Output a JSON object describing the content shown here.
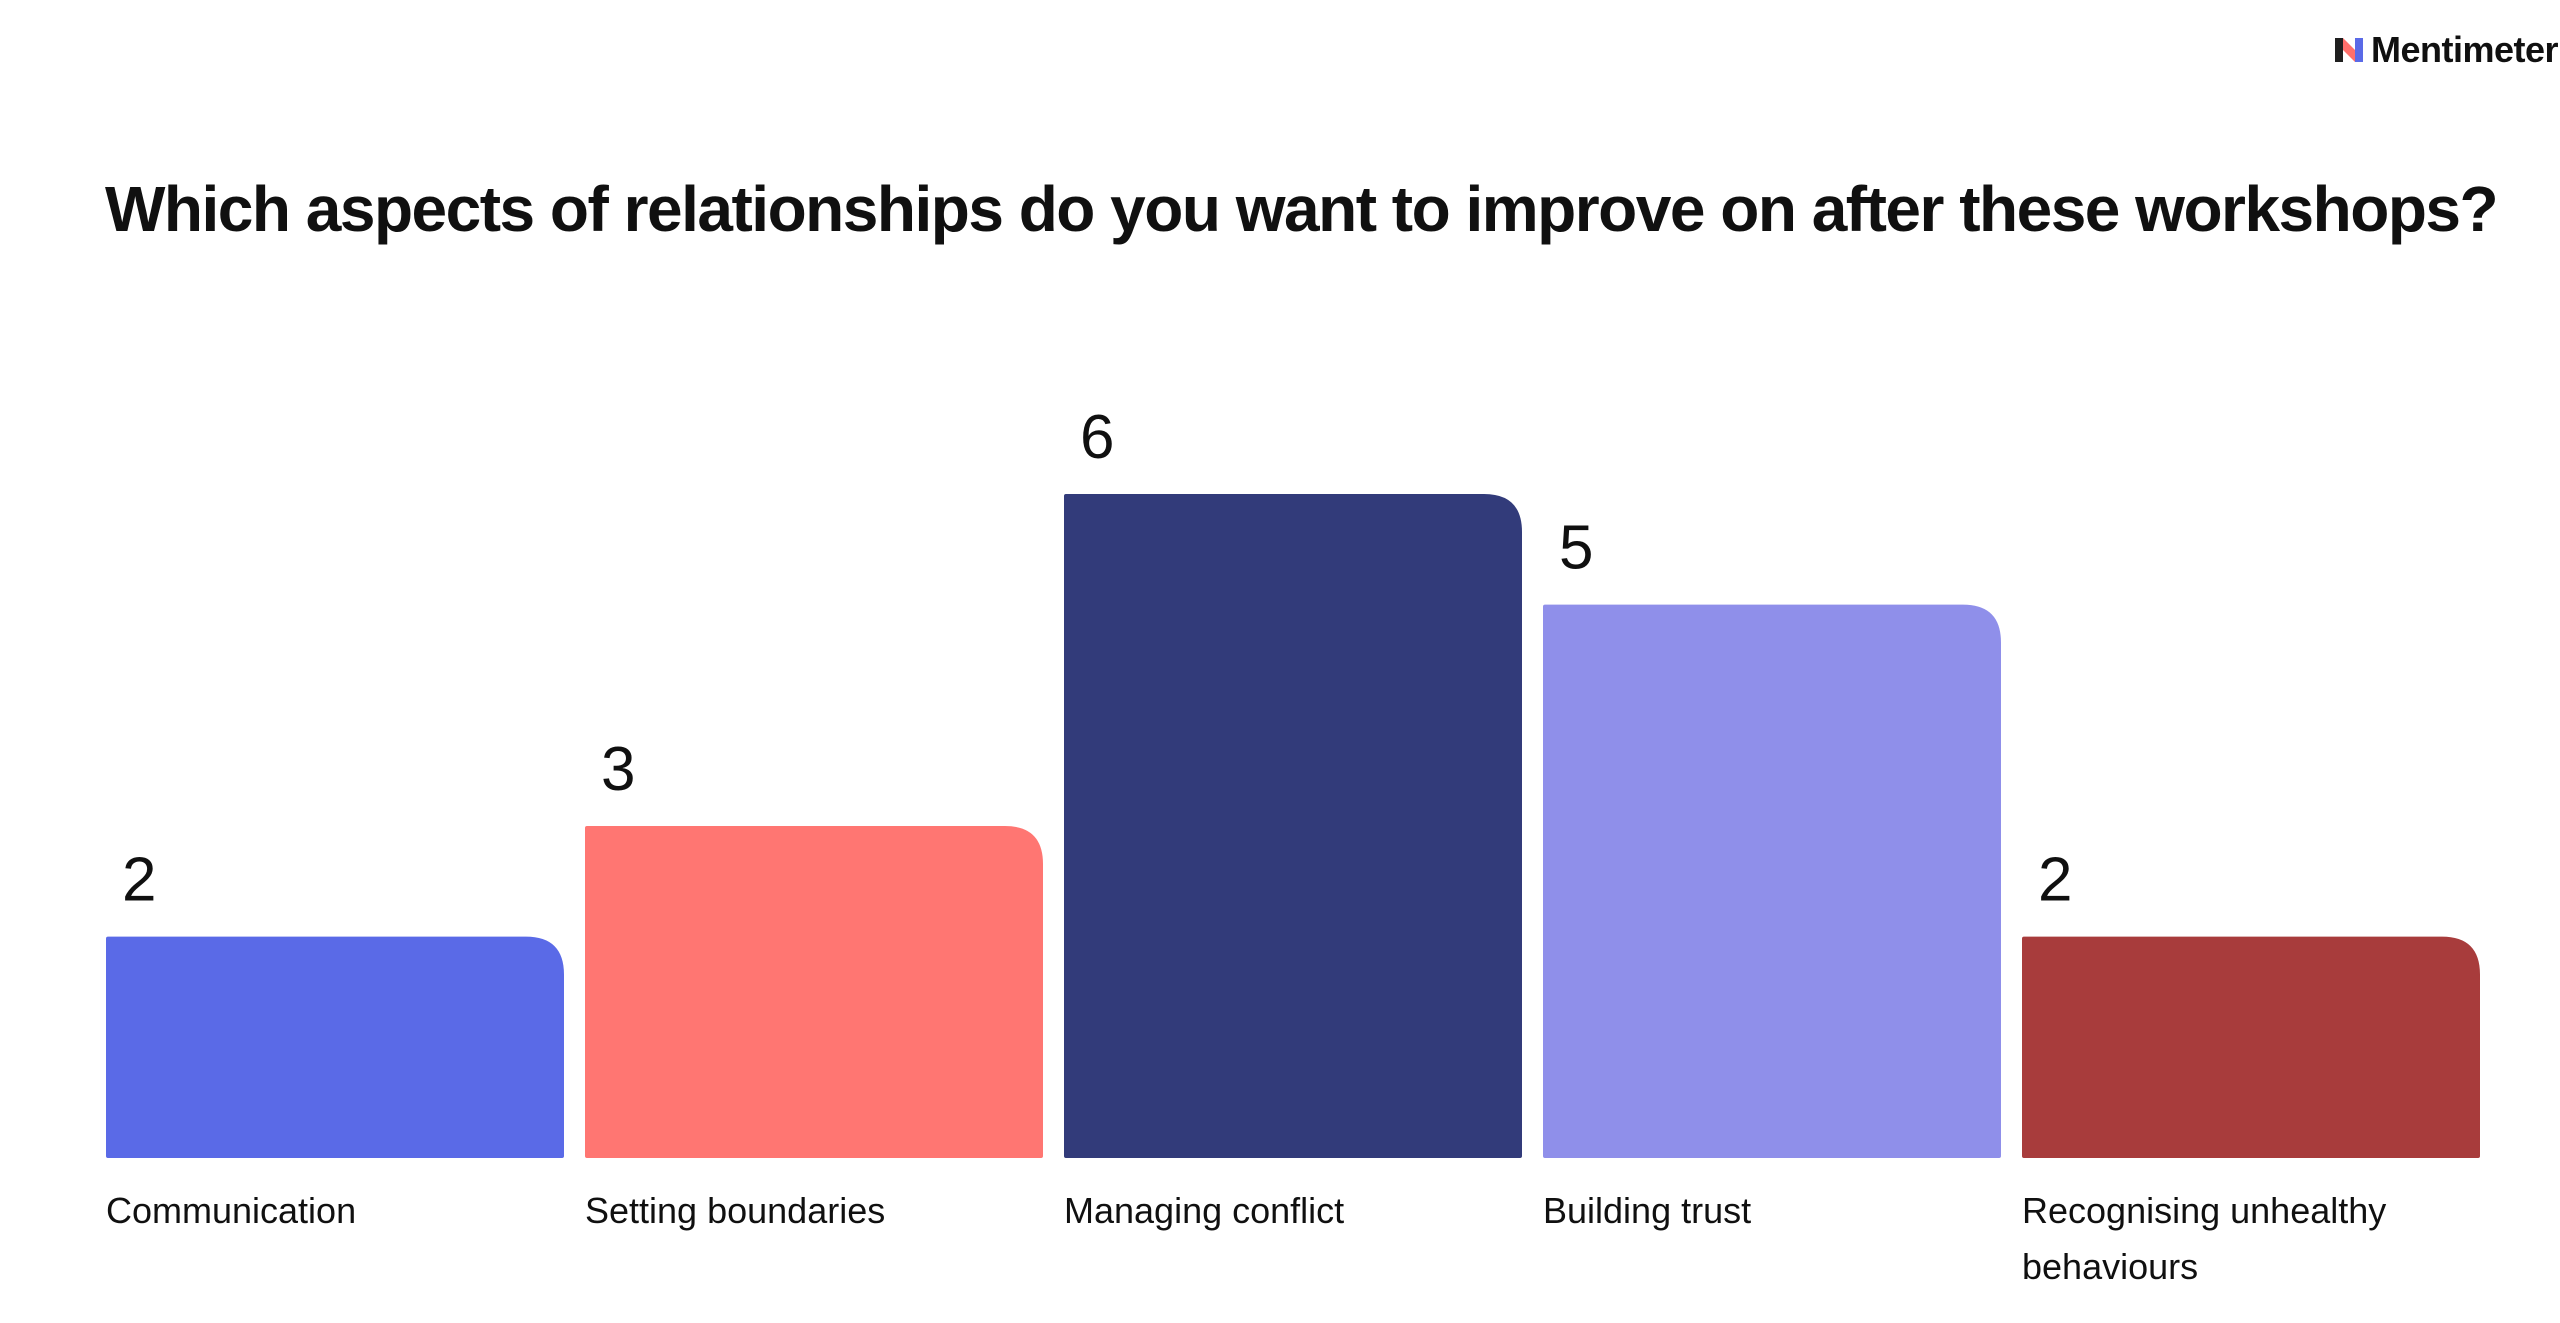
{
  "brand": {
    "name": "Mentimeter",
    "logo_icon": "mentimeter-logo-icon"
  },
  "chart_data": {
    "type": "bar",
    "title": "Which aspects of relationships do you want to improve on after these workshops?",
    "categories": [
      "Communication",
      "Setting boundaries",
      "Managing conflict",
      "Building trust",
      "Recognising unhealthy behaviours"
    ],
    "values": [
      2,
      3,
      6,
      5,
      2
    ],
    "colors": [
      "#5A6AE7",
      "#FF7672",
      "#323B7A",
      "#8F8FEA",
      "#A83C3C"
    ],
    "ylim": [
      0,
      6
    ],
    "grid": false,
    "legend": "none"
  }
}
